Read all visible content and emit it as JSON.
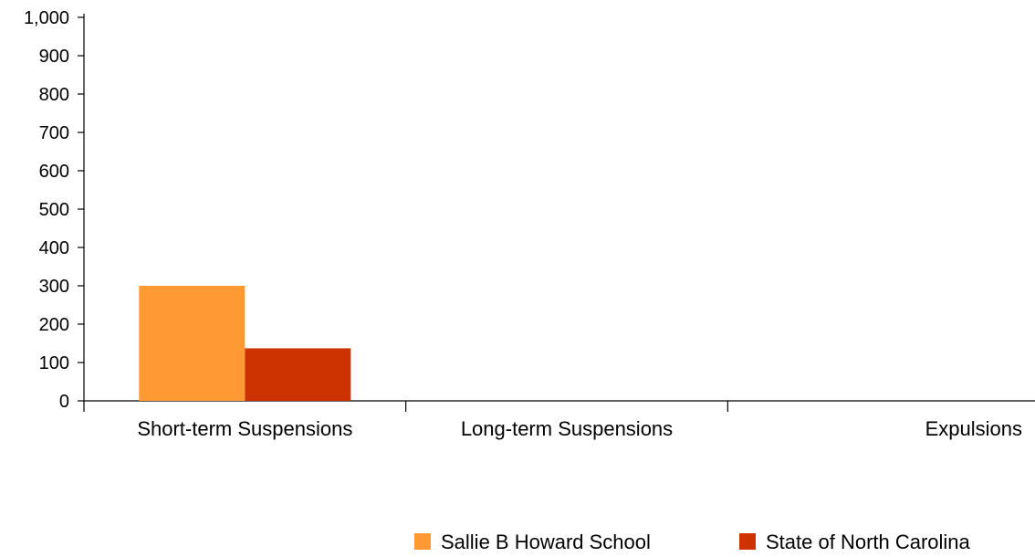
{
  "chart_data": {
    "type": "bar",
    "title": "",
    "xlabel": "",
    "ylabel": "",
    "categories": [
      "Short-term Suspensions",
      "Long-term Suspensions",
      "Expulsions"
    ],
    "series": [
      {
        "name": "Sallie B Howard School",
        "values": [
          300,
          0,
          0
        ],
        "color": "#FF9933"
      },
      {
        "name": "State of North Carolina",
        "values": [
          137,
          0,
          0
        ],
        "color": "#CC3300"
      }
    ],
    "ylim": [
      0,
      1000
    ],
    "yticks": [
      0,
      100,
      200,
      300,
      400,
      500,
      600,
      700,
      800,
      900,
      1000
    ],
    "ytick_labels": [
      "0",
      "100",
      "200",
      "300",
      "400",
      "500",
      "600",
      "700",
      "800",
      "900",
      "1,000"
    ],
    "grid": false,
    "legend_position": "bottom-right"
  }
}
